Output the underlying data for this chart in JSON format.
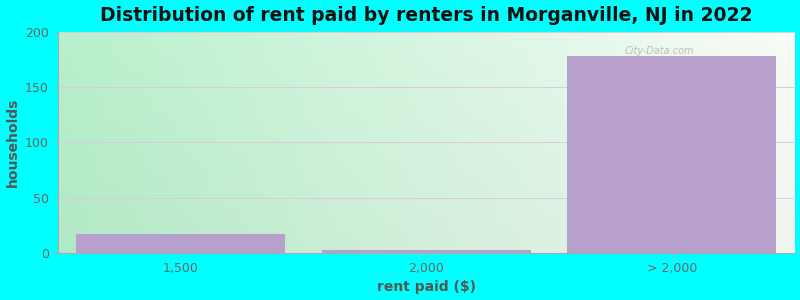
{
  "title": "Distribution of rent paid by renters in Morganville, NJ in 2022",
  "xlabel": "rent paid ($)",
  "ylabel": "households",
  "categories": [
    "1,500",
    "2,000",
    "> 2,000"
  ],
  "values": [
    17,
    3,
    178
  ],
  "bar_color": "#B8A0CC",
  "bar_alpha": 1.0,
  "background_figure": "#00FFFF",
  "ylim": [
    0,
    200
  ],
  "yticks": [
    0,
    50,
    100,
    150,
    200
  ],
  "title_fontsize": 13.5,
  "label_fontsize": 10,
  "tick_fontsize": 9,
  "grid_color": "#ddc8dd",
  "bg_left": "#b8f0cc",
  "bg_right": "#f5f5f0"
}
